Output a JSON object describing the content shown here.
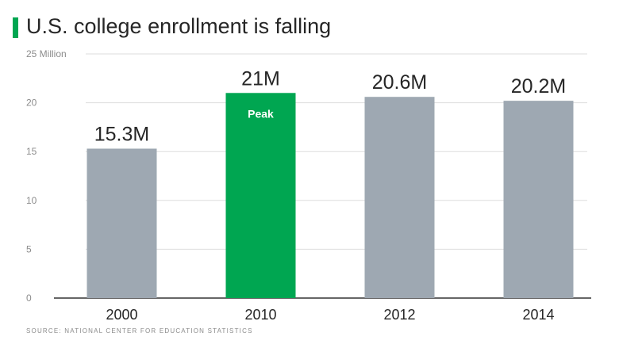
{
  "title": "U.S. college enrollment is falling",
  "source": "SOURCE: NATIONAL CENTER FOR EDUCATION STATISTICS",
  "colors": {
    "accent": "#00a651",
    "bar": "#9ea8b2",
    "highlight": "#00a651",
    "grid": "#dddddd",
    "text": "#262626",
    "muted": "#8c8c8c"
  },
  "chart_data": {
    "type": "bar",
    "categories": [
      "2000",
      "2010",
      "2012",
      "2014"
    ],
    "values": [
      15.3,
      21,
      20.6,
      20.2
    ],
    "data_labels": [
      "15.3M",
      "21M",
      "20.6M",
      "20.2M"
    ],
    "highlight_index": 1,
    "annotation": {
      "category": "2010",
      "text": "Peak"
    },
    "ylim": [
      0,
      25
    ],
    "yticks": [
      0,
      5,
      10,
      15,
      20,
      25
    ],
    "ytick_labels": [
      "0",
      "5",
      "10",
      "15",
      "20",
      "25 Million"
    ],
    "grid": true
  }
}
